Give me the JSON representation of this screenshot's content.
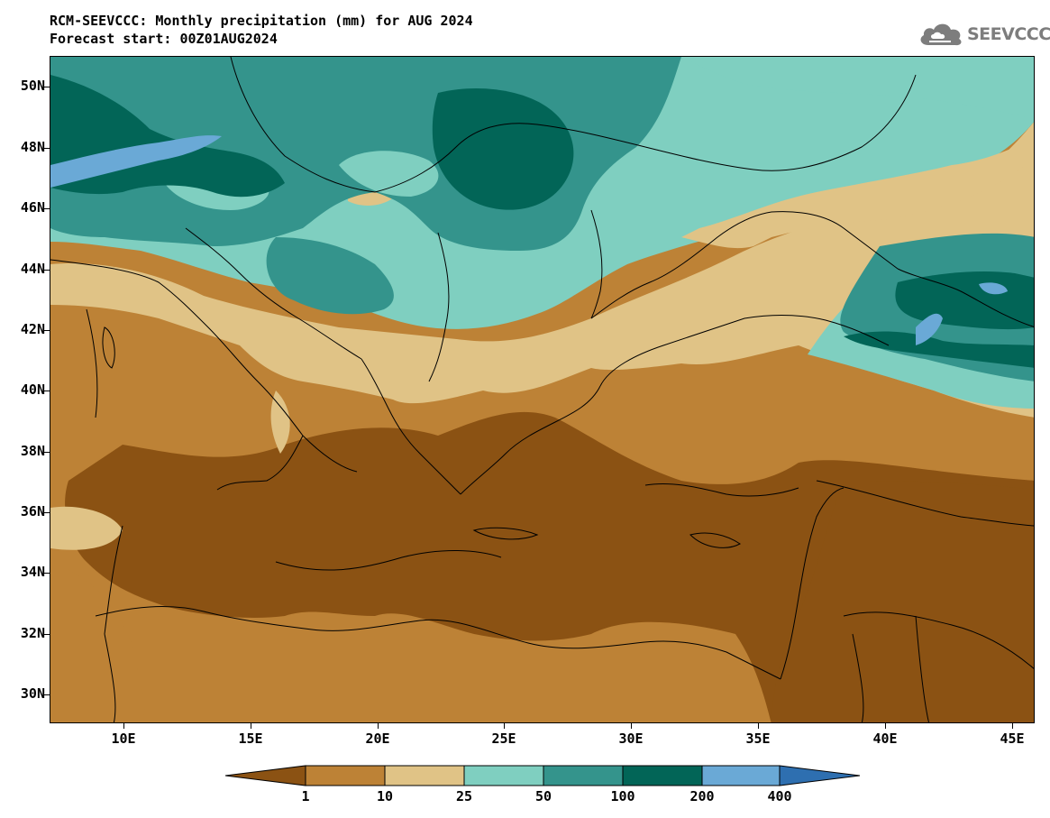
{
  "header": {
    "title": "RCM-SEEVCCC: Monthly precipitation (mm) for AUG 2024",
    "subtitle": "Forecast start: 00Z01AUG2024"
  },
  "logo": {
    "text": "SEEVCCC",
    "icon": "cloud-icon"
  },
  "axes": {
    "lat_labels": [
      "50N",
      "48N",
      "46N",
      "44N",
      "42N",
      "40N",
      "38N",
      "36N",
      "34N",
      "32N",
      "30N"
    ],
    "lon_labels": [
      "10E",
      "15E",
      "20E",
      "25E",
      "30E",
      "35E",
      "40E",
      "45E"
    ]
  },
  "legend": {
    "thresholds": [
      "1",
      "10",
      "25",
      "50",
      "100",
      "200",
      "400"
    ],
    "colors": [
      "#8b5213",
      "#bd8236",
      "#e0c386",
      "#7fcfc0",
      "#34948c",
      "#026557",
      "#6aa9d6",
      "#2e6fb0"
    ]
  }
}
